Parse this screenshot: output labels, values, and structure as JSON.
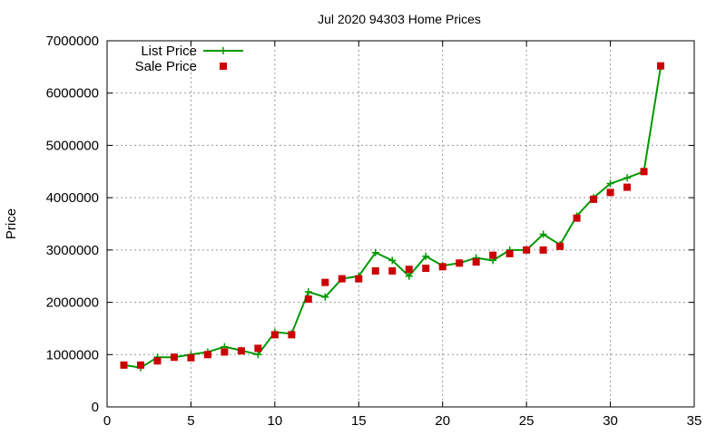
{
  "chart_data": {
    "type": "line",
    "title": "Jul 2020 94303 Home Prices",
    "xlabel": "",
    "ylabel": "Price",
    "xlim": [
      0,
      35
    ],
    "ylim": [
      0,
      7000000
    ],
    "x_ticks": [
      "0",
      "5",
      "10",
      "15",
      "20",
      "25",
      "30",
      "35"
    ],
    "y_ticks": [
      "0",
      "1000000",
      "2000000",
      "3000000",
      "4000000",
      "5000000",
      "6000000",
      "7000000"
    ],
    "grid": true,
    "legend_position": "top-left",
    "series": [
      {
        "name": "List Price",
        "style": "line-plus",
        "color": "#009900",
        "x": [
          1,
          2,
          3,
          4,
          5,
          6,
          7,
          8,
          9,
          10,
          11,
          12,
          13,
          14,
          15,
          16,
          17,
          18,
          19,
          20,
          21,
          22,
          23,
          24,
          25,
          26,
          27,
          28,
          29,
          30,
          31,
          32,
          33
        ],
        "values": [
          800000,
          750000,
          950000,
          950000,
          1000000,
          1050000,
          1150000,
          1080000,
          1000000,
          1430000,
          1400000,
          2200000,
          2100000,
          2450000,
          2500000,
          2950000,
          2800000,
          2500000,
          2880000,
          2700000,
          2750000,
          2850000,
          2800000,
          3000000,
          3000000,
          3300000,
          3100000,
          3650000,
          4000000,
          4270000,
          4380000,
          4500000,
          6500000
        ]
      },
      {
        "name": "Sale Price",
        "style": "square",
        "color": "#cc0000",
        "x": [
          1,
          2,
          3,
          4,
          5,
          6,
          7,
          8,
          9,
          10,
          11,
          12,
          13,
          14,
          15,
          16,
          17,
          18,
          19,
          20,
          21,
          22,
          23,
          24,
          25,
          26,
          27,
          28,
          29,
          30,
          31,
          32,
          33
        ],
        "values": [
          800000,
          800000,
          880000,
          950000,
          940000,
          1000000,
          1050000,
          1070000,
          1120000,
          1380000,
          1380000,
          2060000,
          2380000,
          2450000,
          2450000,
          2600000,
          2600000,
          2630000,
          2650000,
          2680000,
          2750000,
          2770000,
          2900000,
          2930000,
          3000000,
          3000000,
          3070000,
          3610000,
          3970000,
          4100000,
          4200000,
          4500000,
          6520000
        ]
      }
    ]
  }
}
